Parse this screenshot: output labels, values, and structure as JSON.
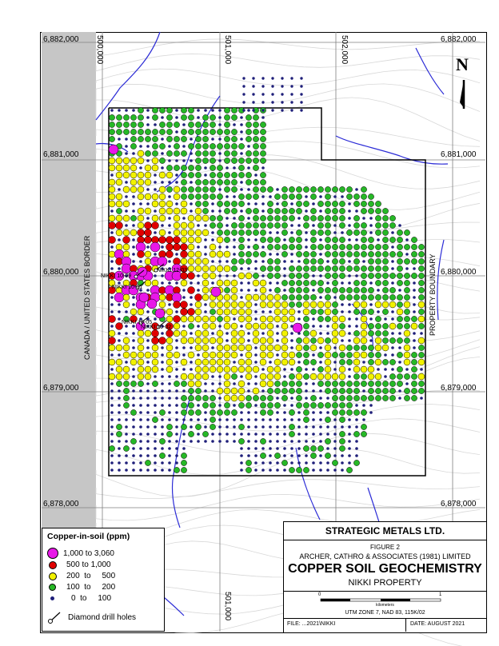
{
  "map": {
    "easting_labels": [
      "500,000",
      "501,000",
      "502,000"
    ],
    "easting_label_bottom": "501,000",
    "northing_labels": [
      "6,882,000",
      "6,881,000",
      "6,880,000",
      "6,879,000",
      "6,878,000"
    ],
    "border_label": "CANADA / UNITED STATES BORDER",
    "property_label": "PROPERTY BOUNDARY",
    "north_arrow": "N",
    "drill_hole_labels": [
      "NIKKI 10-09",
      "NIKKI 12-03",
      "NIKKI 10-01",
      "NIKKI 10-05",
      "NIKKI 10-02"
    ],
    "colors": {
      "grid": "#7f7f7f",
      "contour": "#d8d8d8",
      "stream": "#2b2bd6",
      "border_strip": "#c6c6c6",
      "magenta": "#e817e8",
      "red": "#e00000",
      "yellow": "#f2f200",
      "green": "#26b826",
      "navy": "#1f1f7a"
    }
  },
  "legend": {
    "title": "Copper-in-soil (ppm)",
    "items": [
      {
        "label": "1,000  to  3,060",
        "color": "#e817e8",
        "size": 12
      },
      {
        "label": "500  to  1,000",
        "color": "#e00000",
        "size": 9
      },
      {
        "label": "200  to     500",
        "color": "#f2f200",
        "size": 8
      },
      {
        "label": "100  to     200",
        "color": "#26b826",
        "size": 7
      },
      {
        "label": "0  to     100",
        "color": "#1f1f7a",
        "size": 4
      }
    ],
    "drill_label": "Diamond drill holes"
  },
  "title_block": {
    "company": "STRATEGIC METALS LTD.",
    "figure": "FIGURE 2",
    "consultant": "ARCHER, CATHRO & ASSOCIATES (1981) LIMITED",
    "title": "COPPER SOIL GEOCHEMISTRY",
    "subtitle": "NIKKI PROPERTY",
    "scale_start": "0",
    "scale_end": "1",
    "scale_unit": "kilometers",
    "projection": "UTM ZONE 7, NAD 83, 115K/02",
    "file": "FILE:  ...2021\\NIKKI",
    "date": "DATE:  AUGUST 2021"
  }
}
